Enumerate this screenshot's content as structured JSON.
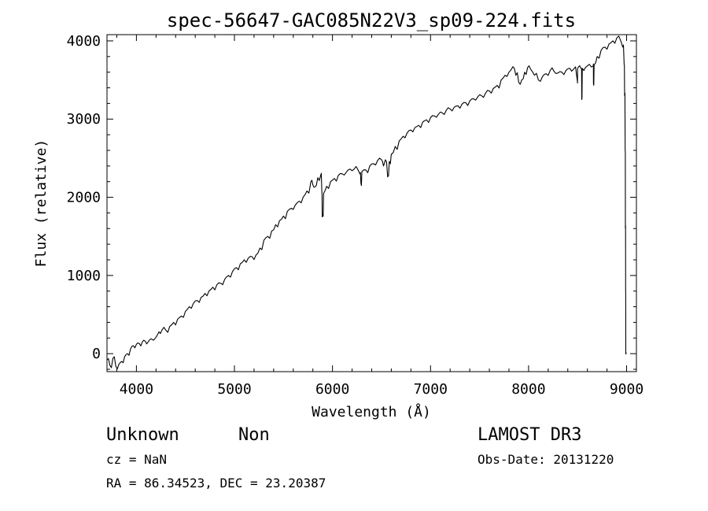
{
  "chart_data": {
    "type": "line",
    "title": "spec-56647-GAC085N22V3_sp09-224.fits",
    "xlabel": "Wavelength (Å)",
    "ylabel": "Flux (relative)",
    "xlim": [
      3700,
      9100
    ],
    "ylim": [
      -230,
      4080
    ],
    "xticks": [
      "4000",
      "5000",
      "6000",
      "7000",
      "8000",
      "9000"
    ],
    "yticks": [
      "0",
      "1000",
      "2000",
      "3000",
      "4000"
    ],
    "grid": false,
    "series": [
      {
        "points": [
          [
            3700,
            -80
          ],
          [
            3730,
            -150
          ],
          [
            3760,
            -60
          ],
          [
            3790,
            -160
          ],
          [
            3820,
            -140
          ],
          [
            3850,
            -100
          ],
          [
            3880,
            -40
          ],
          [
            3910,
            0
          ],
          [
            3940,
            60
          ],
          [
            3970,
            100
          ],
          [
            4000,
            120
          ],
          [
            4030,
            130
          ],
          [
            4060,
            150
          ],
          [
            4090,
            160
          ],
          [
            4120,
            150
          ],
          [
            4150,
            190
          ],
          [
            4200,
            210
          ],
          [
            4230,
            280
          ],
          [
            4260,
            300
          ],
          [
            4300,
            300
          ],
          [
            4340,
            350
          ],
          [
            4380,
            400
          ],
          [
            4420,
            440
          ],
          [
            4460,
            480
          ],
          [
            4500,
            540
          ],
          [
            4540,
            600
          ],
          [
            4580,
            640
          ],
          [
            4620,
            680
          ],
          [
            4660,
            720
          ],
          [
            4700,
            770
          ],
          [
            4740,
            800
          ],
          [
            4780,
            850
          ],
          [
            4820,
            880
          ],
          [
            4860,
            900
          ],
          [
            4900,
            950
          ],
          [
            4940,
            1000
          ],
          [
            4980,
            1050
          ],
          [
            5020,
            1100
          ],
          [
            5060,
            1150
          ],
          [
            5100,
            1200
          ],
          [
            5140,
            1220
          ],
          [
            5180,
            1240
          ],
          [
            5220,
            1260
          ],
          [
            5260,
            1350
          ],
          [
            5300,
            1450
          ],
          [
            5340,
            1500
          ],
          [
            5380,
            1570
          ],
          [
            5420,
            1650
          ],
          [
            5460,
            1700
          ],
          [
            5500,
            1760
          ],
          [
            5540,
            1820
          ],
          [
            5580,
            1860
          ],
          [
            5620,
            1900
          ],
          [
            5660,
            1950
          ],
          [
            5700,
            2000
          ],
          [
            5740,
            2080
          ],
          [
            5780,
            2200
          ],
          [
            5800,
            2160
          ],
          [
            5820,
            2130
          ],
          [
            5850,
            2250
          ],
          [
            5880,
            2280
          ],
          [
            5892,
            2050
          ],
          [
            5895,
            1750
          ],
          [
            5900,
            1780
          ],
          [
            5910,
            2050
          ],
          [
            5940,
            2140
          ],
          [
            5980,
            2200
          ],
          [
            6020,
            2240
          ],
          [
            6060,
            2280
          ],
          [
            6100,
            2300
          ],
          [
            6140,
            2320
          ],
          [
            6180,
            2360
          ],
          [
            6220,
            2360
          ],
          [
            6260,
            2350
          ],
          [
            6280,
            2300
          ],
          [
            6290,
            2180
          ],
          [
            6300,
            2330
          ],
          [
            6340,
            2350
          ],
          [
            6380,
            2400
          ],
          [
            6420,
            2430
          ],
          [
            6460,
            2470
          ],
          [
            6500,
            2480
          ],
          [
            6520,
            2400
          ],
          [
            6540,
            2480
          ],
          [
            6563,
            2260
          ],
          [
            6580,
            2460
          ],
          [
            6600,
            2550
          ],
          [
            6640,
            2650
          ],
          [
            6680,
            2720
          ],
          [
            6720,
            2780
          ],
          [
            6760,
            2820
          ],
          [
            6800,
            2860
          ],
          [
            6840,
            2890
          ],
          [
            6880,
            2920
          ],
          [
            6920,
            2960
          ],
          [
            6960,
            2990
          ],
          [
            7000,
            3020
          ],
          [
            7040,
            3040
          ],
          [
            7080,
            3060
          ],
          [
            7120,
            3080
          ],
          [
            7160,
            3110
          ],
          [
            7200,
            3130
          ],
          [
            7240,
            3150
          ],
          [
            7280,
            3170
          ],
          [
            7320,
            3190
          ],
          [
            7360,
            3210
          ],
          [
            7400,
            3230
          ],
          [
            7440,
            3260
          ],
          [
            7480,
            3280
          ],
          [
            7520,
            3300
          ],
          [
            7560,
            3330
          ],
          [
            7600,
            3360
          ],
          [
            7640,
            3390
          ],
          [
            7680,
            3430
          ],
          [
            7720,
            3500
          ],
          [
            7760,
            3560
          ],
          [
            7800,
            3600
          ],
          [
            7840,
            3670
          ],
          [
            7870,
            3560
          ],
          [
            7900,
            3470
          ],
          [
            7930,
            3500
          ],
          [
            7960,
            3600
          ],
          [
            7990,
            3660
          ],
          [
            8020,
            3640
          ],
          [
            8060,
            3560
          ],
          [
            8100,
            3500
          ],
          [
            8140,
            3540
          ],
          [
            8180,
            3580
          ],
          [
            8220,
            3620
          ],
          [
            8260,
            3610
          ],
          [
            8300,
            3590
          ],
          [
            8340,
            3600
          ],
          [
            8380,
            3620
          ],
          [
            8420,
            3650
          ],
          [
            8460,
            3640
          ],
          [
            8498,
            3480
          ],
          [
            8500,
            3650
          ],
          [
            8540,
            3640
          ],
          [
            8542,
            3250
          ],
          [
            8548,
            3650
          ],
          [
            8580,
            3660
          ],
          [
            8620,
            3700
          ],
          [
            8660,
            3680
          ],
          [
            8662,
            3450
          ],
          [
            8668,
            3690
          ],
          [
            8700,
            3800
          ],
          [
            8740,
            3880
          ],
          [
            8780,
            3920
          ],
          [
            8820,
            3960
          ],
          [
            8860,
            4000
          ],
          [
            8900,
            4040
          ],
          [
            8940,
            4000
          ],
          [
            8960,
            3920
          ],
          [
            8975,
            3700
          ],
          [
            8980,
            3300
          ],
          [
            8985,
            2600
          ],
          [
            8988,
            1600
          ],
          [
            8990,
            800
          ],
          [
            8992,
            0
          ],
          [
            8994,
            -10
          ]
        ]
      }
    ]
  },
  "info": {
    "object_class": "Unknown",
    "object_subclass": "Non",
    "cz": "cz = NaN",
    "coords": "RA =  86.34523, DEC =  23.20387",
    "release": "LAMOST DR3",
    "obs_date": "Obs-Date: 20131220"
  }
}
